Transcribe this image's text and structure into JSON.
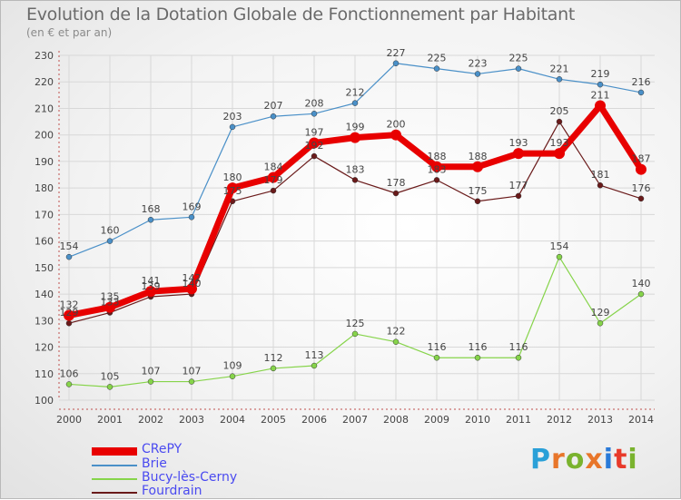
{
  "title": "Evolution de la Dotation Globale de Fonctionnement par Habitant",
  "subtitle": "(en € et par an)",
  "logo": {
    "text": "Proxiti",
    "colors": [
      "#2aa0d8",
      "#e8762a",
      "#7ab32e",
      "#e8762a",
      "#2a7ad8",
      "#e83a2a",
      "#7ab32e"
    ]
  },
  "chart_data": {
    "type": "line",
    "x": [
      2000,
      2001,
      2002,
      2003,
      2004,
      2005,
      2006,
      2007,
      2008,
      2009,
      2010,
      2011,
      2012,
      2013,
      2014
    ],
    "ylim": [
      100,
      230
    ],
    "yticks": [
      100,
      110,
      120,
      130,
      140,
      150,
      160,
      170,
      180,
      190,
      200,
      210,
      220,
      230
    ],
    "grid": true,
    "legend": "bottom-left",
    "series": [
      {
        "name": "CRePY",
        "color": "#e80000",
        "values": [
          132,
          135,
          141,
          142,
          180,
          184,
          197,
          199,
          200,
          188,
          188,
          193,
          193,
          211,
          187
        ]
      },
      {
        "name": "Brie",
        "color": "#4a90c8",
        "values": [
          154,
          160,
          168,
          169,
          203,
          207,
          208,
          212,
          227,
          225,
          223,
          225,
          221,
          219,
          216
        ]
      },
      {
        "name": "Bucy-lès-Cerny",
        "color": "#86d44a",
        "values": [
          106,
          105,
          107,
          107,
          109,
          112,
          113,
          125,
          122,
          116,
          116,
          116,
          154,
          129,
          140
        ]
      },
      {
        "name": "Fourdrain",
        "color": "#6a1a1a",
        "values": [
          129,
          133,
          139,
          140,
          175,
          179,
          192,
          183,
          178,
          183,
          175,
          177,
          205,
          181,
          176
        ]
      }
    ]
  }
}
